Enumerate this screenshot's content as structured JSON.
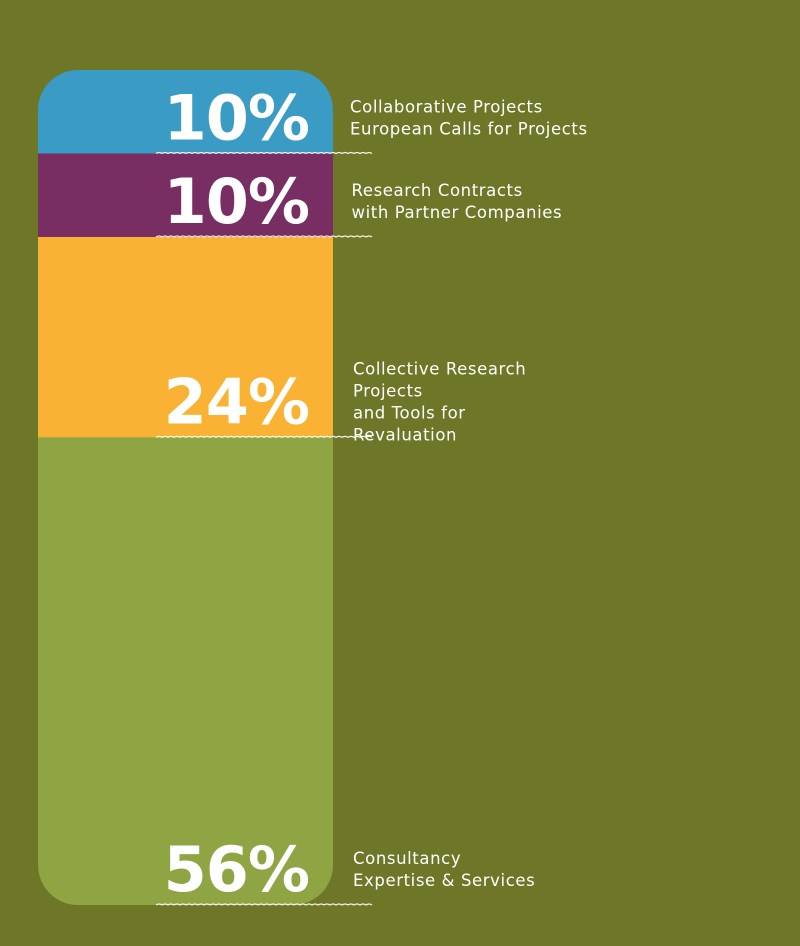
{
  "chart_data": {
    "type": "bar",
    "stacked": true,
    "orientation": "vertical",
    "categories": [
      "Collaborative Projects\nEuropean Calls for Projects",
      "Research Contracts\nwith Partner Companies",
      "Collective Research\nProjects\nand Tools for\nRevaluation",
      "Consultancy\nExpertise & Services"
    ],
    "values": [
      10,
      10,
      24,
      56
    ],
    "value_labels": [
      "10%",
      "10%",
      "24%",
      "56%"
    ],
    "label_lines": [
      [
        "Collaborative Projects",
        "European Calls for Projects"
      ],
      [
        "Research Contracts",
        "with Partner Companies"
      ],
      [
        "Collective Research",
        "Projects",
        "and Tools for",
        "Revaluation"
      ],
      [
        "Consultancy",
        "Expertise & Services"
      ]
    ],
    "colors": [
      "#3a9cc4",
      "#782d63",
      "#f9b233",
      "#8fa443"
    ],
    "background_color": "#6e7727",
    "unit": "%",
    "title": "",
    "xlabel": "",
    "ylabel": "",
    "grid": false,
    "legend": "right"
  }
}
